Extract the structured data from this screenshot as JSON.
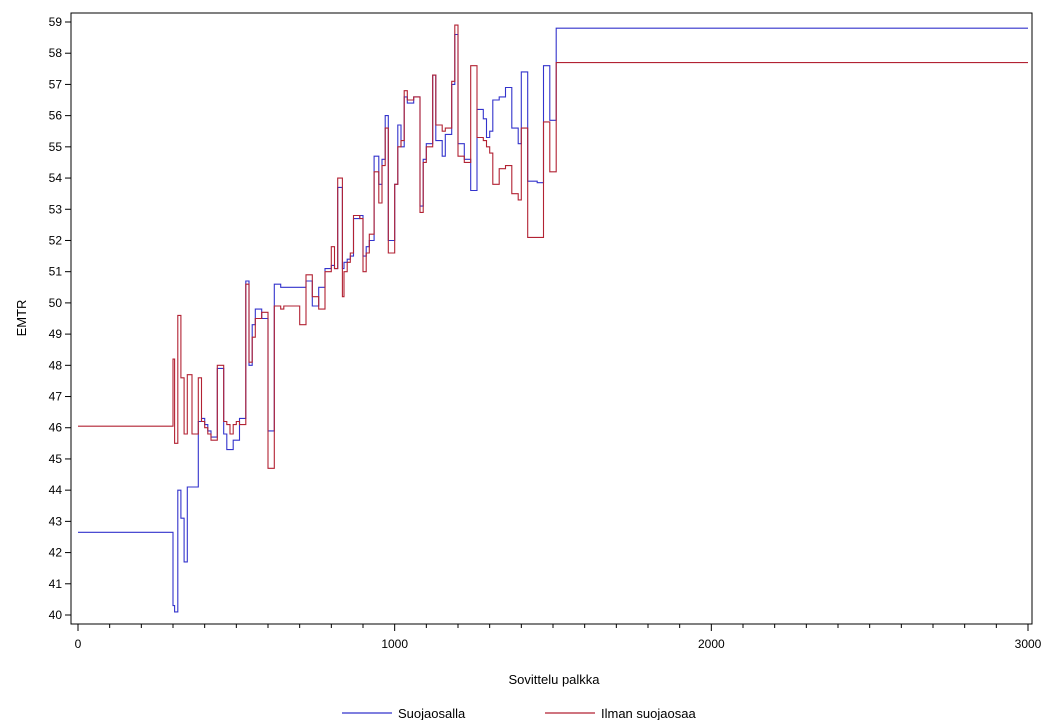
{
  "chart_data": {
    "type": "line",
    "step": true,
    "xlabel": "Sovittelu palkka",
    "ylabel": "EMTR",
    "xlim": [
      0,
      3000
    ],
    "ylim": [
      40,
      59
    ],
    "x_ticks": [
      0,
      1000,
      2000,
      3000
    ],
    "x_minor_step": 100,
    "y_ticks": [
      40,
      41,
      42,
      43,
      44,
      45,
      46,
      47,
      48,
      49,
      50,
      51,
      52,
      53,
      54,
      55,
      56,
      57,
      58,
      59
    ],
    "grid": false,
    "legend_position": "bottom",
    "series": [
      {
        "name": "Suojaosalla",
        "color": "#3333cc",
        "x": [
          0,
          300,
          305,
          315,
          325,
          335,
          345,
          360,
          380,
          390,
          400,
          410,
          420,
          440,
          460,
          470,
          480,
          490,
          500,
          510,
          520,
          530,
          540,
          550,
          560,
          580,
          600,
          620,
          640,
          650,
          660,
          680,
          700,
          720,
          740,
          760,
          780,
          800,
          810,
          820,
          835,
          840,
          850,
          860,
          870,
          890,
          900,
          910,
          920,
          935,
          950,
          960,
          970,
          980,
          1000,
          1010,
          1020,
          1030,
          1040,
          1060,
          1080,
          1090,
          1100,
          1120,
          1130,
          1150,
          1160,
          1180,
          1190,
          1200,
          1220,
          1240,
          1260,
          1280,
          1290,
          1300,
          1310,
          1330,
          1350,
          1370,
          1390,
          1400,
          1420,
          1450,
          1470,
          1490,
          1510,
          1540,
          1560,
          1590,
          1610,
          1650,
          1700,
          1790,
          1880,
          2100,
          3000
        ],
        "y": [
          42.65,
          40.3,
          40.1,
          44.0,
          43.1,
          41.7,
          44.1,
          44.1,
          46.2,
          46.3,
          46.1,
          45.9,
          45.7,
          47.9,
          45.8,
          45.3,
          45.3,
          45.6,
          45.6,
          46.3,
          46.3,
          50.7,
          48.0,
          49.3,
          49.8,
          49.5,
          45.9,
          50.6,
          50.5,
          50.5,
          50.5,
          50.5,
          50.5,
          50.7,
          49.9,
          50.5,
          51.1,
          51.2,
          51.1,
          53.7,
          51.1,
          51.3,
          51.4,
          51.5,
          52.7,
          52.8,
          51.5,
          51.8,
          52.0,
          54.7,
          53.8,
          54.6,
          56.0,
          52.0,
          53.8,
          55.7,
          55.0,
          56.6,
          56.4,
          56.6,
          53.1,
          54.6,
          55.1,
          57.3,
          55.2,
          54.7,
          55.4,
          57.0,
          58.6,
          55.1,
          54.6,
          53.6,
          56.2,
          55.9,
          55.3,
          55.5,
          56.5,
          56.6,
          56.9,
          55.6,
          55.1,
          57.4,
          53.9,
          53.85,
          57.6,
          55.85,
          58.8,
          58.8,
          58.8,
          58.8,
          58.8,
          58.8,
          58.8,
          58.8,
          58.8,
          58.8,
          58.8
        ]
      },
      {
        "name": "Ilman suojaosaa",
        "color": "#b22233",
        "x": [
          0,
          300,
          305,
          315,
          325,
          335,
          345,
          360,
          380,
          390,
          400,
          410,
          420,
          440,
          460,
          470,
          480,
          490,
          500,
          510,
          520,
          530,
          540,
          550,
          560,
          580,
          600,
          620,
          640,
          650,
          660,
          680,
          700,
          720,
          740,
          760,
          780,
          800,
          810,
          820,
          835,
          840,
          850,
          860,
          870,
          890,
          900,
          910,
          920,
          935,
          950,
          960,
          970,
          980,
          1000,
          1010,
          1020,
          1030,
          1040,
          1060,
          1080,
          1090,
          1100,
          1120,
          1130,
          1150,
          1160,
          1180,
          1190,
          1200,
          1220,
          1240,
          1260,
          1280,
          1290,
          1300,
          1310,
          1330,
          1350,
          1370,
          1390,
          1400,
          1420,
          1450,
          1470,
          1490,
          1510,
          1540,
          1560,
          1590,
          1610,
          1650,
          1700,
          1790,
          1880,
          2100,
          3000
        ],
        "y": [
          46.05,
          48.2,
          45.5,
          49.6,
          47.6,
          45.8,
          47.7,
          45.8,
          47.6,
          46.2,
          46.0,
          45.8,
          45.6,
          48.0,
          46.2,
          46.1,
          45.8,
          46.1,
          46.2,
          46.1,
          46.1,
          50.6,
          48.1,
          48.9,
          49.5,
          49.7,
          44.7,
          49.9,
          49.8,
          49.9,
          49.9,
          49.9,
          49.3,
          50.9,
          50.2,
          49.8,
          51.0,
          51.8,
          51.1,
          54.0,
          50.2,
          51.0,
          51.3,
          51.6,
          52.8,
          52.7,
          51.0,
          51.6,
          52.2,
          54.2,
          53.2,
          54.4,
          55.6,
          51.6,
          53.8,
          55.0,
          55.2,
          56.8,
          56.5,
          56.6,
          52.9,
          54.5,
          55.0,
          57.3,
          55.7,
          55.5,
          55.6,
          57.1,
          58.9,
          54.7,
          54.5,
          57.6,
          55.3,
          55.2,
          55.0,
          54.8,
          53.8,
          54.3,
          54.4,
          53.5,
          53.3,
          55.6,
          52.1,
          52.1,
          55.8,
          54.2,
          57.7,
          57.7,
          57.7,
          57.7,
          57.7,
          57.7,
          57.7,
          57.7,
          57.7,
          57.7,
          57.7
        ]
      }
    ]
  }
}
